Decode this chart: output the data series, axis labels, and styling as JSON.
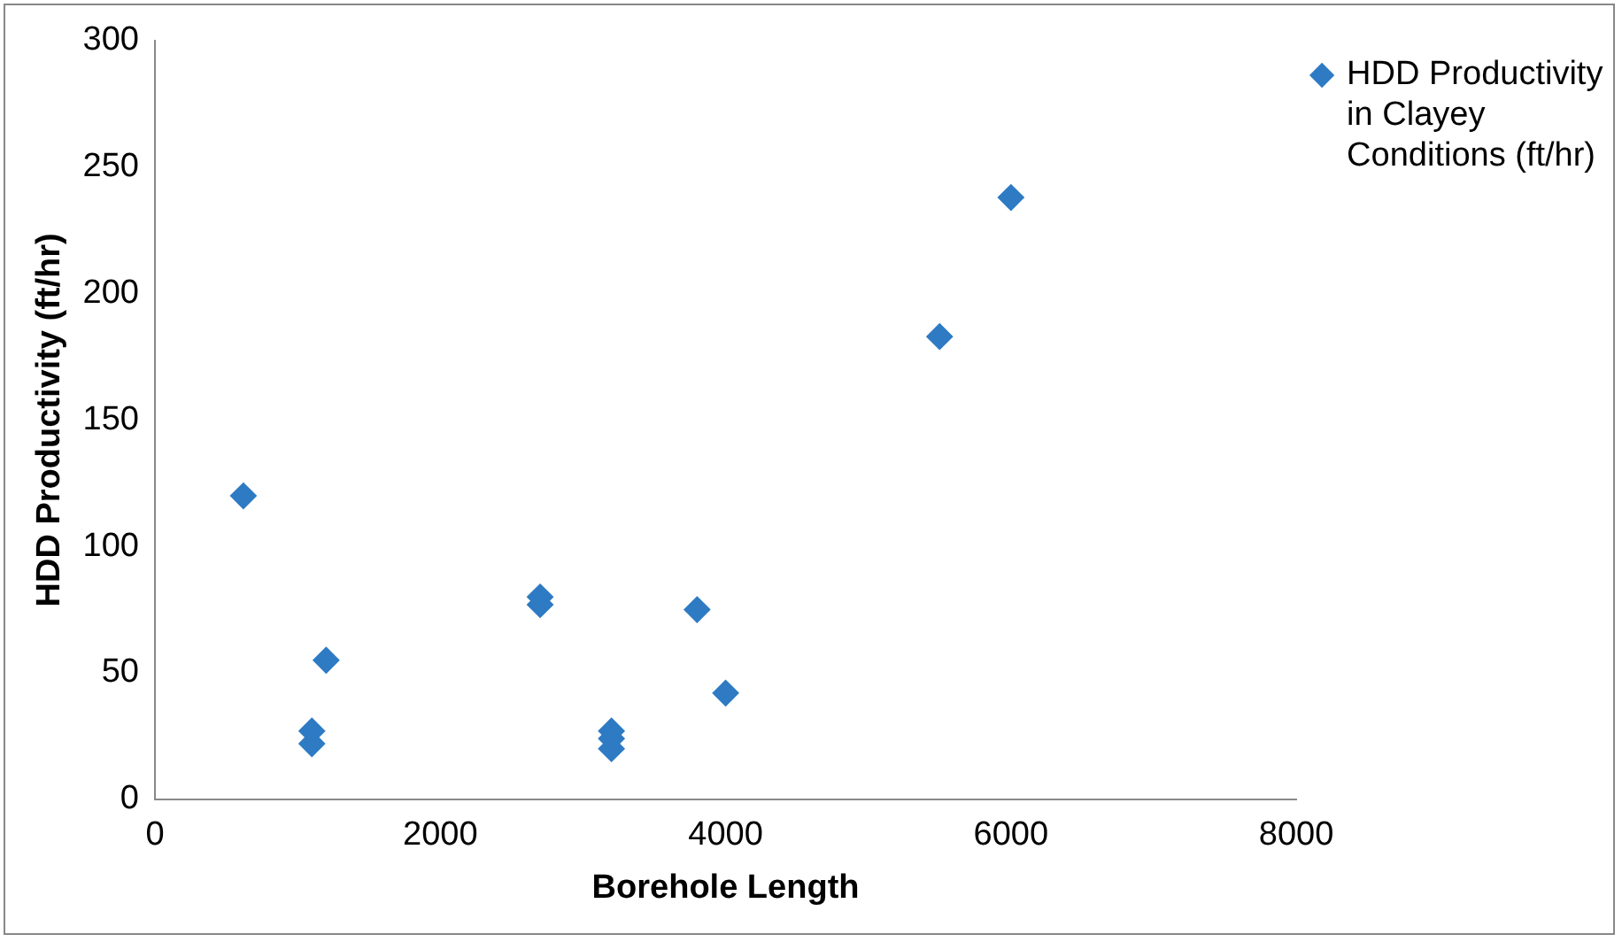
{
  "chart_data": {
    "type": "scatter",
    "xlabel": "Borehole Length",
    "ylabel": "HDD Productivity (ft/hr)",
    "x": [
      620,
      1100,
      1100,
      1200,
      2700,
      2700,
      3200,
      3200,
      3200,
      3800,
      4000,
      5500,
      6000
    ],
    "series": [
      {
        "name": "HDD Productivity in Clayey Conditions (ft/hr)",
        "color": "#2e7bc4",
        "values": [
          120,
          27,
          22,
          55,
          80,
          77,
          27,
          24,
          20,
          75,
          42,
          183,
          238
        ]
      }
    ],
    "xlim": [
      0,
      8000
    ],
    "xticks": [
      0,
      2000,
      4000,
      6000,
      8000
    ],
    "ylim": [
      0,
      300
    ],
    "yticks": [
      0,
      50,
      100,
      150,
      200,
      250,
      300
    ],
    "grid": false,
    "legend": "right",
    "marker": "diamond"
  }
}
